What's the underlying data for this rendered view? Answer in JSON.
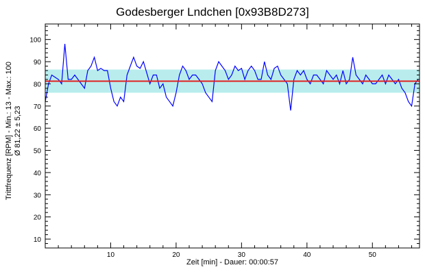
{
  "chart_data": {
    "type": "line",
    "title": "Godesberger Lndchen [0x93B8D273]",
    "xlabel": "Zeit [min] - Dauer: 00:00:57",
    "ylabel": "Trittfrequenz [RPM] - Min.: 13 - Max.: 100",
    "ylabel2": "Ø 81,22 ± 5,23",
    "xlim": [
      0,
      57.2
    ],
    "ylim": [
      6,
      107
    ],
    "xticks": [
      10,
      20,
      30,
      40,
      50
    ],
    "yticks": [
      10,
      20,
      30,
      40,
      50,
      60,
      70,
      80,
      90,
      100
    ],
    "mean": 81.22,
    "std": 5.23,
    "colors": {
      "series": "#0000ff",
      "mean": "#e02020",
      "band": "#a8e8e8"
    },
    "series": [
      {
        "name": "Trittfrequenz",
        "x_step": 0.5,
        "values": [
          72,
          80,
          84,
          83,
          82,
          80,
          98,
          82,
          82,
          84,
          82,
          80,
          78,
          86,
          88,
          92,
          86,
          87,
          86,
          86,
          78,
          72,
          70,
          74,
          72,
          84,
          88,
          92,
          88,
          87,
          90,
          85,
          80,
          84,
          84,
          78,
          80,
          74,
          72,
          70,
          76,
          84,
          88,
          86,
          82,
          84,
          84,
          82,
          80,
          76,
          74,
          72,
          86,
          90,
          88,
          86,
          82,
          84,
          88,
          86,
          87,
          82,
          86,
          88,
          86,
          82,
          82,
          90,
          84,
          82,
          87,
          88,
          84,
          82,
          80,
          68,
          82,
          86,
          84,
          86,
          82,
          80,
          84,
          84,
          82,
          80,
          86,
          84,
          82,
          84,
          80,
          86,
          80,
          82,
          92,
          84,
          82,
          80,
          84,
          82,
          80,
          80,
          82,
          84,
          80,
          84,
          82,
          80,
          82,
          78,
          76,
          72,
          70,
          80,
          82
        ]
      }
    ]
  }
}
